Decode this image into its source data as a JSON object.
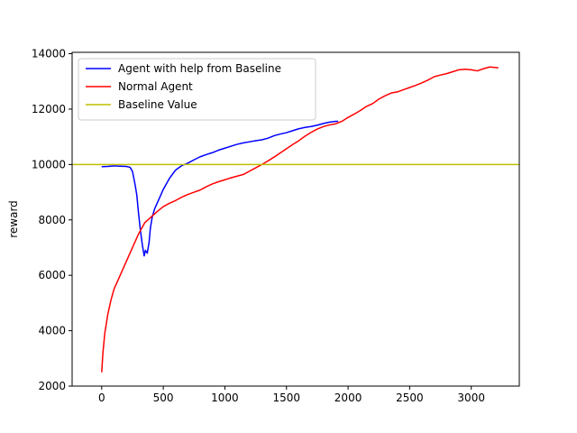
{
  "chart_data": {
    "type": "line",
    "title": "",
    "xlabel": "",
    "ylabel": "reward",
    "xlim": [
      -240,
      3390
    ],
    "ylim": [
      2000,
      14050
    ],
    "xticks": [
      0,
      500,
      1000,
      1500,
      2000,
      2500,
      3000
    ],
    "yticks": [
      2000,
      4000,
      6000,
      8000,
      10000,
      12000,
      14000
    ],
    "grid": false,
    "legend_position": "top-left",
    "series": [
      {
        "name": "Agent with help from Baseline",
        "color": "#0000ff",
        "x": [
          0,
          50,
          100,
          150,
          200,
          230,
          250,
          270,
          285,
          300,
          315,
          330,
          345,
          355,
          370,
          385,
          395,
          410,
          430,
          460,
          500,
          550,
          600,
          650,
          700,
          750,
          800,
          850,
          900,
          950,
          1000,
          1050,
          1100,
          1150,
          1200,
          1250,
          1300,
          1350,
          1400,
          1450,
          1500,
          1550,
          1600,
          1650,
          1700,
          1750,
          1800,
          1850,
          1900,
          1920
        ],
        "y": [
          9920,
          9930,
          9950,
          9940,
          9930,
          9900,
          9750,
          9300,
          8900,
          8200,
          7600,
          7100,
          6700,
          6900,
          6800,
          7200,
          7700,
          8100,
          8400,
          8700,
          9100,
          9500,
          9800,
          9960,
          10050,
          10170,
          10280,
          10360,
          10430,
          10520,
          10590,
          10660,
          10730,
          10780,
          10820,
          10860,
          10890,
          10950,
          11040,
          11100,
          11150,
          11220,
          11290,
          11340,
          11370,
          11420,
          11480,
          11530,
          11560,
          11560
        ]
      },
      {
        "name": "Normal Agent",
        "color": "#ff0000",
        "x": [
          0,
          10,
          25,
          50,
          75,
          100,
          150,
          200,
          250,
          300,
          350,
          400,
          450,
          500,
          550,
          600,
          650,
          700,
          750,
          800,
          850,
          900,
          950,
          1000,
          1050,
          1100,
          1150,
          1200,
          1250,
          1300,
          1350,
          1400,
          1450,
          1500,
          1550,
          1600,
          1650,
          1700,
          1750,
          1800,
          1850,
          1900,
          1950,
          2000,
          2050,
          2100,
          2150,
          2200,
          2250,
          2300,
          2350,
          2400,
          2450,
          2500,
          2550,
          2600,
          2650,
          2700,
          2750,
          2800,
          2850,
          2900,
          2950,
          3000,
          3050,
          3100,
          3150,
          3200,
          3220
        ],
        "y": [
          2500,
          3200,
          3900,
          4600,
          5100,
          5500,
          6000,
          6500,
          7000,
          7500,
          7900,
          8100,
          8300,
          8480,
          8600,
          8700,
          8820,
          8920,
          9000,
          9080,
          9200,
          9300,
          9380,
          9450,
          9520,
          9580,
          9640,
          9760,
          9880,
          10000,
          10130,
          10270,
          10420,
          10570,
          10720,
          10860,
          11020,
          11160,
          11280,
          11370,
          11430,
          11470,
          11560,
          11700,
          11820,
          11950,
          12100,
          12200,
          12360,
          12480,
          12580,
          12620,
          12700,
          12780,
          12860,
          12950,
          13050,
          13170,
          13230,
          13280,
          13350,
          13420,
          13440,
          13420,
          13380,
          13460,
          13520,
          13500,
          13490
        ]
      },
      {
        "name": "Baseline Value",
        "color": "#bfbf00",
        "x": [
          -240,
          3390
        ],
        "y": [
          10000,
          10000
        ]
      }
    ]
  }
}
